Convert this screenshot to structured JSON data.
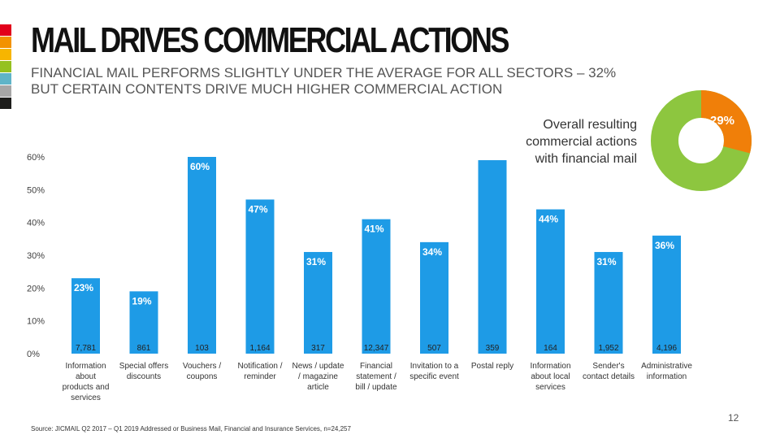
{
  "header": {
    "title": "MAIL DRIVES COMMERCIAL ACTIONS",
    "subtitle_line1": "FINANCIAL MAIL PERFORMS SLIGHTLY UNDER THE AVERAGE FOR ALL SECTORS – 32%",
    "subtitle_line2": "BUT CERTAIN CONTENTS DRIVE MUCH HIGHER COMMERCIAL ACTION"
  },
  "accent_stripes": [
    "#e2001a",
    "#f39200",
    "#f7b500",
    "#95c11f",
    "#5fb4c8",
    "#a6a6a6",
    "#1d1d1b"
  ],
  "overall": {
    "line1": "Overall resulting",
    "line2": "commercial actions",
    "line3": "with financial mail",
    "value": 29,
    "label": "29%",
    "colors": {
      "highlight": "#f07f09",
      "rest": "#8dc63f"
    }
  },
  "chart_data": {
    "type": "bar",
    "title": "",
    "xlabel": "",
    "ylabel": "",
    "ylim": [
      0,
      60
    ],
    "yticks": [
      "0%",
      "10%",
      "20%",
      "30%",
      "40%",
      "50%",
      "60%"
    ],
    "categories": [
      [
        "Information",
        "about",
        "products and",
        "services"
      ],
      [
        "Special offers",
        "discounts"
      ],
      [
        "Vouchers /",
        "coupons"
      ],
      [
        "Notification /",
        "reminder"
      ],
      [
        "News / update",
        "/ magazine",
        "article"
      ],
      [
        "Financial",
        "statement /",
        "bill / update"
      ],
      [
        "Invitation to a",
        "specific event"
      ],
      [
        "Postal reply"
      ],
      [
        "Information",
        "about local",
        "services"
      ],
      [
        "Sender's",
        "contact details"
      ],
      [
        "Administrative",
        "information"
      ]
    ],
    "values": [
      23,
      19,
      60,
      47,
      31,
      41,
      34,
      59,
      44,
      31,
      36
    ],
    "value_labels": [
      "23%",
      "19%",
      "60%",
      "47%",
      "31%",
      "41%",
      "34%",
      "",
      "44%",
      "31%",
      "36%"
    ],
    "counts": [
      "7,781",
      "861",
      "103",
      "1,164",
      "317",
      "12,347",
      "507",
      "359",
      "164",
      "1,952",
      "4,196"
    ],
    "bar_color": "#1e9be6"
  },
  "footer": {
    "page_number": "12",
    "source": "Source: JICMAIL Q2 2017 – Q1 2019 Addressed or Business Mail, Financial and Insurance Services, n=24,257"
  }
}
